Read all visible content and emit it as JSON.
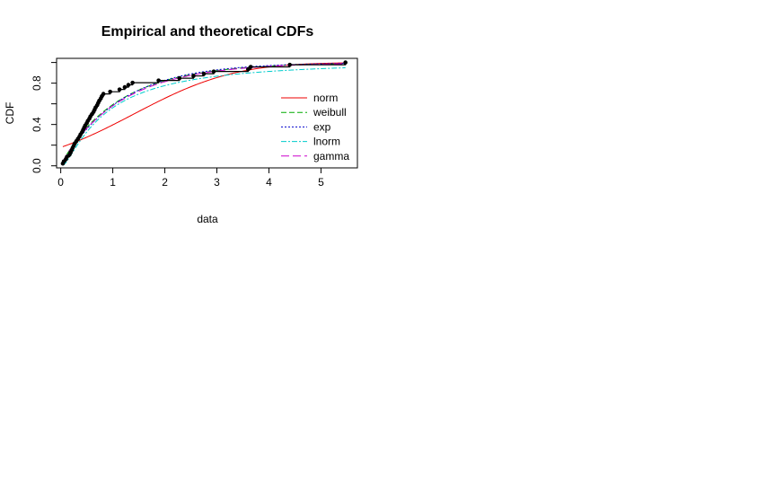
{
  "chart_data": {
    "type": "line",
    "title": "Empirical and theoretical CDFs",
    "xlabel": "data",
    "ylabel": "CDF",
    "xlim": [
      -0.08,
      5.7
    ],
    "ylim": [
      -0.02,
      1.04
    ],
    "x_ticks": [
      0,
      1,
      2,
      3,
      4,
      5
    ],
    "y_ticks": [
      0.0,
      0.4,
      0.8
    ],
    "x_tick_labels": [
      "0",
      "1",
      "2",
      "3",
      "4",
      "5"
    ],
    "y_tick_labels": [
      "0.0",
      "0.4",
      "0.8"
    ],
    "legend_position": "right",
    "grid": false,
    "empirical": {
      "x": [
        0.04,
        0.06,
        0.1,
        0.12,
        0.17,
        0.19,
        0.21,
        0.23,
        0.25,
        0.27,
        0.3,
        0.33,
        0.36,
        0.38,
        0.41,
        0.43,
        0.45,
        0.47,
        0.5,
        0.52,
        0.55,
        0.57,
        0.6,
        0.63,
        0.65,
        0.67,
        0.7,
        0.72,
        0.74,
        0.77,
        0.79,
        0.82,
        0.95,
        1.13,
        1.23,
        1.3,
        1.38,
        1.88,
        2.28,
        2.55,
        2.75,
        2.94,
        3.6,
        3.65,
        4.4,
        5.47
      ],
      "y": [
        0.022,
        0.043,
        0.065,
        0.087,
        0.109,
        0.13,
        0.152,
        0.174,
        0.196,
        0.217,
        0.239,
        0.261,
        0.283,
        0.304,
        0.326,
        0.348,
        0.37,
        0.391,
        0.413,
        0.435,
        0.457,
        0.478,
        0.5,
        0.522,
        0.543,
        0.565,
        0.587,
        0.609,
        0.63,
        0.652,
        0.674,
        0.696,
        0.717,
        0.739,
        0.761,
        0.783,
        0.804,
        0.826,
        0.848,
        0.87,
        0.891,
        0.913,
        0.935,
        0.957,
        0.978,
        1.0
      ]
    },
    "series": [
      {
        "name": "norm",
        "color": "#ee0000",
        "dash": "",
        "dist": "norm",
        "params": {
          "mean": 1.4,
          "sd": 1.52
        }
      },
      {
        "name": "weibull",
        "color": "#00aa00",
        "dash": "6,3",
        "dist": "weibull",
        "params": {
          "shape": 0.95,
          "scale": 1.12
        }
      },
      {
        "name": "exp",
        "color": "#0000cc",
        "dash": "2,2",
        "dist": "exp",
        "params": {
          "rate": 0.88
        }
      },
      {
        "name": "lnorm",
        "color": "#00cccc",
        "dash": "6,2,2,2",
        "dist": "lnorm",
        "params": {
          "meanlog": -0.18,
          "sdlog": 1.15
        }
      },
      {
        "name": "gamma",
        "color": "#cc00cc",
        "dash": "9,4",
        "dist": "gamma",
        "params": {
          "shape": 0.92,
          "rate": 0.78
        }
      }
    ]
  }
}
